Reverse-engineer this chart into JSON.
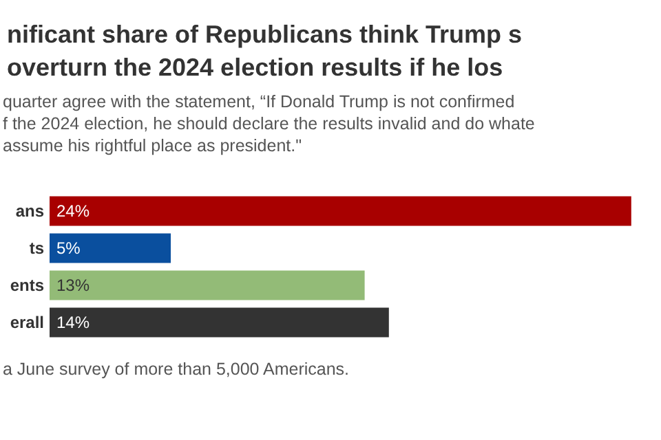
{
  "chart_data": {
    "type": "bar",
    "orientation": "horizontal",
    "title": "nificant share of Republicans think Trump s\noverturn the 2024 election results if he los",
    "subtitle": "quarter agree with the statement, “If Donald Trump is not confirmed\nf the 2024 election, he should declare the results invalid and do whate\nassume his rightful place as president.\"",
    "categories": [
      "ans",
      "ts",
      "ents",
      "erall"
    ],
    "values": [
      24,
      5,
      13,
      14
    ],
    "colors": [
      "#a80000",
      "#0a4f9e",
      "#93bb77",
      "#333333"
    ],
    "value_labels": [
      "24%",
      "5%",
      "13%",
      "14%"
    ],
    "annotations": [
      "a June survey of more than 5,000 Americans."
    ]
  }
}
